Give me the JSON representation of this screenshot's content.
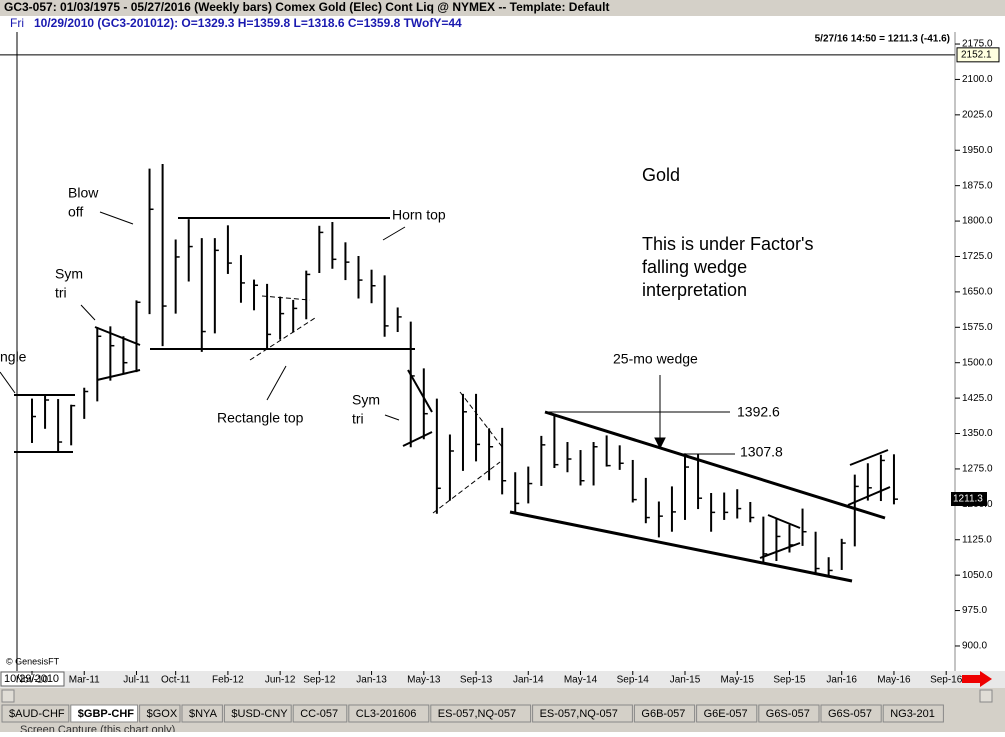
{
  "window": {
    "title": "GC3-057:  01/03/1975 - 05/27/2016  (Weekly bars)   Comex Gold (Elec) Cont Liq @ NYMEX  --  Template: Default",
    "info_day": "Fri",
    "info": "10/29/2010 (GC3-201012):  O=1329.3  H=1359.8  L=1318.6  C=1359.8  TWofY=44",
    "last_update": "5/27/16 14:50 = 1211.3 (-41.6)",
    "cursor_date": "10/29/2010",
    "copyright": "© GenesisFT",
    "tabs": [
      "$AUD-CHF",
      "$GBP-CHF",
      "$GOX",
      "$NYA",
      "$USD-CNY",
      "CC-057",
      "CL3-201606",
      "ES-057,NQ-057",
      "ES-057,NQ-057",
      "G6B-057",
      "G6E-057",
      "G6S-057",
      "G6S-057",
      "NG3-201"
    ],
    "active_tab": 1,
    "status": "Screen Capture (this chart only)"
  },
  "chart_data": {
    "type": "ohlc",
    "color": "#000000",
    "categories": [
      "Nov-10",
      null,
      null,
      null,
      "Mar-11",
      null,
      null,
      null,
      "Jul-11",
      null,
      null,
      "Oct-11",
      null,
      null,
      null,
      "Feb-12",
      null,
      null,
      null,
      "Jun-12",
      null,
      null,
      "Sep-12",
      null,
      null,
      null,
      "Jan-13",
      null,
      null,
      null,
      "May-13",
      null,
      null,
      null,
      "Sep-13",
      null,
      null,
      null,
      "Jan-14",
      null,
      null,
      null,
      "May-14",
      null,
      null,
      null,
      "Sep-14",
      null,
      null,
      null,
      "Jan-15",
      null,
      null,
      null,
      "May-15",
      null,
      null,
      null,
      "Sep-15",
      null,
      null,
      null,
      "Jan-16",
      null,
      null,
      null,
      "May-16",
      null,
      null,
      null,
      "Sep-16"
    ],
    "high": [
      1424,
      1431,
      1423,
      1411,
      1447,
      1575,
      1577,
      1556,
      1632,
      1911,
      1921,
      1761,
      1804,
      1764,
      1764,
      1791,
      1728,
      1676,
      1667,
      1640,
      1633,
      1695,
      1790,
      1798,
      1755,
      1726,
      1697,
      1685,
      1617,
      1587,
      1488,
      1424,
      1348,
      1434,
      1434,
      1361,
      1362,
      1268,
      1280,
      1345,
      1392,
      1332,
      1315,
      1332,
      1346,
      1325,
      1294,
      1256,
      1206,
      1238,
      1308,
      1306,
      1224,
      1225,
      1232,
      1205,
      1174,
      1170,
      1157,
      1191,
      1142,
      1088,
      1127,
      1263,
      1287,
      1305,
      1306,
      null,
      null,
      null,
      null
    ],
    "low": [
      1330,
      1360,
      1309,
      1325,
      1381,
      1418,
      1462,
      1478,
      1480,
      1603,
      1535,
      1604,
      1672,
      1523,
      1562,
      1688,
      1627,
      1611,
      1527,
      1549,
      1564,
      1592,
      1690,
      1699,
      1675,
      1636,
      1626,
      1555,
      1565,
      1321,
      1338,
      1180,
      1208,
      1271,
      1291,
      1251,
      1221,
      1182,
      1202,
      1239,
      1277,
      1268,
      1240,
      1240,
      1280,
      1273,
      1204,
      1160,
      1130,
      1142,
      1167,
      1190,
      1142,
      1167,
      1170,
      1162,
      1077,
      1080,
      1098,
      1112,
      1052,
      1046,
      1061,
      1111,
      1208,
      1207,
      1200,
      null,
      null,
      null,
      null
    ],
    "close": [
      1386,
      1421,
      1332,
      1409,
      1439,
      1556,
      1536,
      1500,
      1628,
      1825,
      1620,
      1724,
      1746,
      1566,
      1738,
      1711,
      1669,
      1664,
      1560,
      1604,
      1615,
      1687,
      1776,
      1719,
      1713,
      1675,
      1663,
      1578,
      1597,
      1472,
      1392,
      1234,
      1313,
      1396,
      1327,
      1322,
      1250,
      1202,
      1244,
      1326,
      1284,
      1296,
      1250,
      1322,
      1282,
      1287,
      1210,
      1172,
      1175,
      1184,
      1279,
      1213,
      1183,
      1183,
      1191,
      1172,
      1095,
      1132,
      1114,
      1142,
      1064,
      1060,
      1118,
      1238,
      1235,
      1293,
      1211,
      null,
      null,
      null,
      null
    ],
    "ylim": [
      847,
      2192
    ],
    "yticks": [
      {
        "value": 2175,
        "label": "2175.0"
      },
      {
        "value": 2100,
        "label": "2100.0"
      },
      {
        "value": 2025,
        "label": "2025.0"
      },
      {
        "value": 1950,
        "label": "1950.0"
      },
      {
        "value": 1875,
        "label": "1875.0"
      },
      {
        "value": 1800,
        "label": "1800.0"
      },
      {
        "value": 1725,
        "label": "1725.0"
      },
      {
        "value": 1650,
        "label": "1650.0"
      },
      {
        "value": 1575,
        "label": "1575.0"
      },
      {
        "value": 1500,
        "label": "1500.0"
      },
      {
        "value": 1425,
        "label": "1425.0"
      },
      {
        "value": 1350,
        "label": "1350.0"
      },
      {
        "value": 1275,
        "label": "1275.0"
      },
      {
        "value": 1200,
        "label": "1200.0"
      },
      {
        "value": 1125,
        "label": "1125.0"
      },
      {
        "value": 1050,
        "label": "1050.0"
      },
      {
        "value": 975,
        "label": "975.0"
      },
      {
        "value": 900,
        "label": "900.0"
      }
    ],
    "cursor_price": {
      "value": 2152.1,
      "label": "2152.1"
    },
    "last_price": {
      "value": 1211.3,
      "label": "1211.3"
    },
    "annotations": [
      [
        "Blow",
        "off"
      ],
      [
        "Sym",
        "tri"
      ],
      [
        "ngle"
      ],
      [
        "Horn top"
      ],
      [
        "Rectangle top"
      ],
      [
        "Sym",
        "tri"
      ],
      [
        "Gold"
      ],
      [
        "This is under Factor's",
        "falling wedge",
        "interpretation"
      ],
      [
        "25-mo wedge"
      ],
      [
        "1392.6"
      ],
      [
        "1307.8"
      ]
    ]
  }
}
